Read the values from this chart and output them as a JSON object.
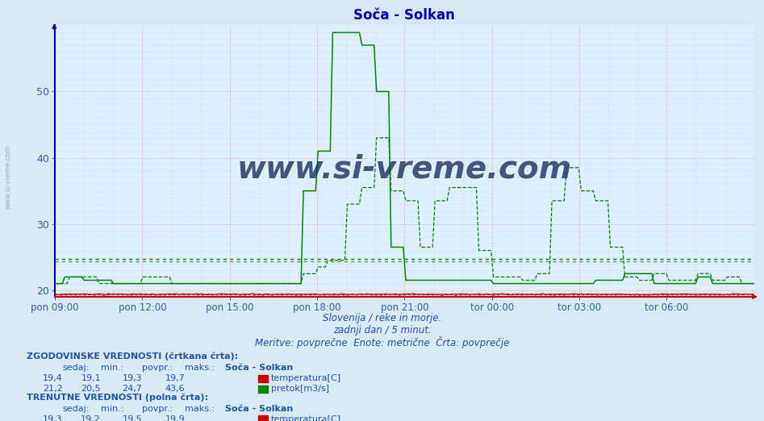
{
  "title": "Soča - Solkan",
  "title_color": "#0000bb",
  "bg_color": "#d8e8f5",
  "plot_bg_color": "#ddeeff",
  "grid_major_color": "#ff8888",
  "grid_minor_color": "#ffbbbb",
  "tick_color": "#3366aa",
  "ylim_min": 19,
  "ylim_max": 60,
  "yticks": [
    20,
    30,
    40,
    50
  ],
  "xtick_labels": [
    "pon 09:00",
    "pon 12:00",
    "pon 15:00",
    "pon 18:00",
    "pon 21:00",
    "tor 00:00",
    "tor 03:00",
    "tor 06:00"
  ],
  "temp_color": "#cc0000",
  "flow_color": "#008800",
  "avg_flow_hist": 24.7,
  "avg_flow_curr": 24.3,
  "watermark": "www.si-vreme.com",
  "watermark_color": "#1a3060",
  "sub_text1": "Slovenija / reke in morje.",
  "sub_text2": "zadnji dan / 5 minut.",
  "sub_text3": "Meritve: povprečne  Enote: metrične  Črta: povprečje",
  "info_color": "#2255aa",
  "left_label": "www.si-vreme.com"
}
